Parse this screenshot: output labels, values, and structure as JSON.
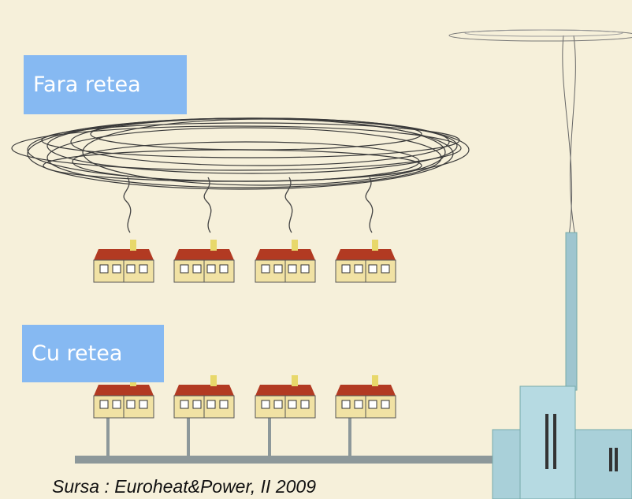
{
  "labels": {
    "without": "Fara retea",
    "with": "Cu retea"
  },
  "source": "Sursa : Euroheat&Power, II 2009"
}
